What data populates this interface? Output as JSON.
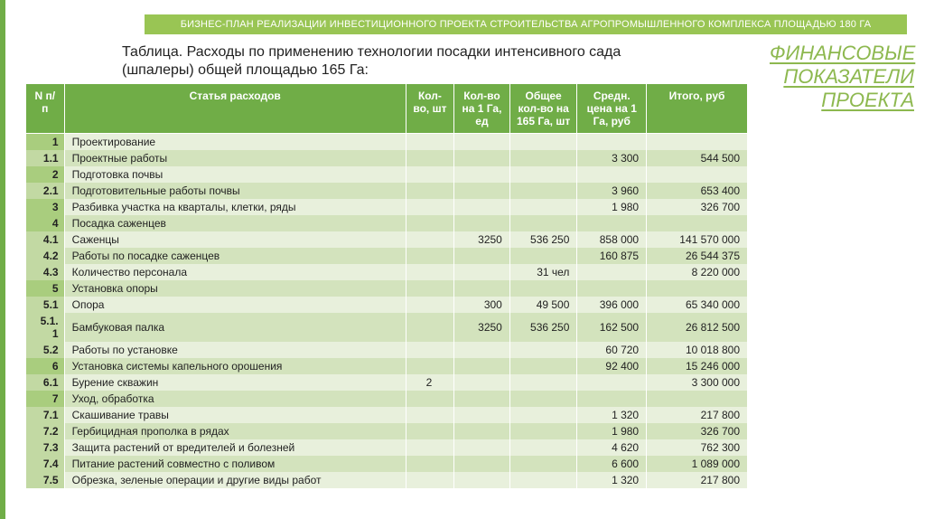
{
  "banner": "БИЗНЕС-ПЛАН РЕАЛИЗАЦИИ ИНВЕСТИЦИОННОГО ПРОЕКТА СТРОИТЕЛЬСТВА АГРОПРОМЫШЛЕННОГО КОМПЛЕКСА ПЛОЩАДЬЮ 180 ГА",
  "section_title_l1": "ФИНАНСОВЫЕ",
  "section_title_l2": "ПОКАЗАТЕЛИ",
  "section_title_l3": "ПРОЕКТА",
  "caption": "Таблица. Расходы по применению технологии посадки интенсивного сада (шпалеры) общей площадью 165 Га:",
  "colors": {
    "accent": "#70ad47",
    "banner_bg": "#99c554",
    "band_a": "#e8f0dc",
    "band_b": "#d3e3bd",
    "num_section": "#a9cd7e",
    "num_sub": "#c2d9a3",
    "title_green": "#8db84f"
  },
  "header": {
    "num": "N п/п",
    "name": "Статья расходов",
    "qty": "Кол-во, шт",
    "perha": "Кол-во на 1 Га, ед",
    "totalq": "Общее кол-во на 165 Га, шт",
    "price": "Средн. цена на 1 Га, руб",
    "sum": "Итого, руб"
  },
  "rows": [
    {
      "n": "1",
      "kind": "section",
      "name": "Проектирование"
    },
    {
      "n": "1.1",
      "kind": "sub",
      "name": "Проектные работы",
      "price": "3 300",
      "sum": "544 500"
    },
    {
      "n": "2",
      "kind": "section",
      "name": "Подготовка почвы"
    },
    {
      "n": "2.1",
      "kind": "sub",
      "name": "Подготовительные работы почвы",
      "price": "3 960",
      "sum": "653 400"
    },
    {
      "n": "3",
      "kind": "section",
      "name": "Разбивка участка на кварталы, клетки, ряды",
      "price": "1 980",
      "sum": "326 700"
    },
    {
      "n": "4",
      "kind": "section",
      "name": "Посадка саженцев"
    },
    {
      "n": "4.1",
      "kind": "sub",
      "name": "Саженцы",
      "perha": "3250",
      "totalq": "536 250",
      "price": "858 000",
      "sum": "141 570 000"
    },
    {
      "n": "4.2",
      "kind": "sub",
      "name": "Работы по посадке саженцев",
      "price": "160 875",
      "sum": "26 544 375"
    },
    {
      "n": "4.3",
      "kind": "sub",
      "name": "Количество персонала",
      "totalq": "31 чел",
      "sum": "8 220 000"
    },
    {
      "n": "5",
      "kind": "section",
      "name": "Установка опоры"
    },
    {
      "n": "5.1",
      "kind": "sub",
      "name": "Опора",
      "perha": "300",
      "totalq": "49 500",
      "price": "396 000",
      "sum": "65 340 000"
    },
    {
      "n": "5.1.1",
      "kind": "sub",
      "name": "Бамбуковая палка",
      "perha": "3250",
      "totalq": "536 250",
      "price": "162 500",
      "sum": "26 812 500"
    },
    {
      "n": "5.2",
      "kind": "sub",
      "name": "Работы по установке",
      "price": "60 720",
      "sum": "10 018 800"
    },
    {
      "n": "6",
      "kind": "section",
      "name": "Установка системы капельного орошения",
      "price": "92 400",
      "sum": "15 246 000"
    },
    {
      "n": "6.1",
      "kind": "sub",
      "name": "Бурение скважин",
      "qty": "2",
      "sum": "3 300 000"
    },
    {
      "n": "7",
      "kind": "section",
      "name": "Уход, обработка"
    },
    {
      "n": "7.1",
      "kind": "sub",
      "name": "Скашивание травы",
      "price": "1 320",
      "sum": "217 800"
    },
    {
      "n": "7.2",
      "kind": "sub",
      "name": "Гербицидная прополка в рядах",
      "price": "1 980",
      "sum": "326 700"
    },
    {
      "n": "7.3",
      "kind": "sub",
      "name": "Защита растений от вредителей и болезней",
      "price": "4 620",
      "sum": "762 300"
    },
    {
      "n": "7.4",
      "kind": "sub",
      "name": "Питание растений совместно с поливом",
      "price": "6 600",
      "sum": "1 089 000"
    },
    {
      "n": "7.5",
      "kind": "sub",
      "name": "Обрезка, зеленые операции и другие виды работ",
      "price": "1 320",
      "sum": "217 800"
    }
  ]
}
